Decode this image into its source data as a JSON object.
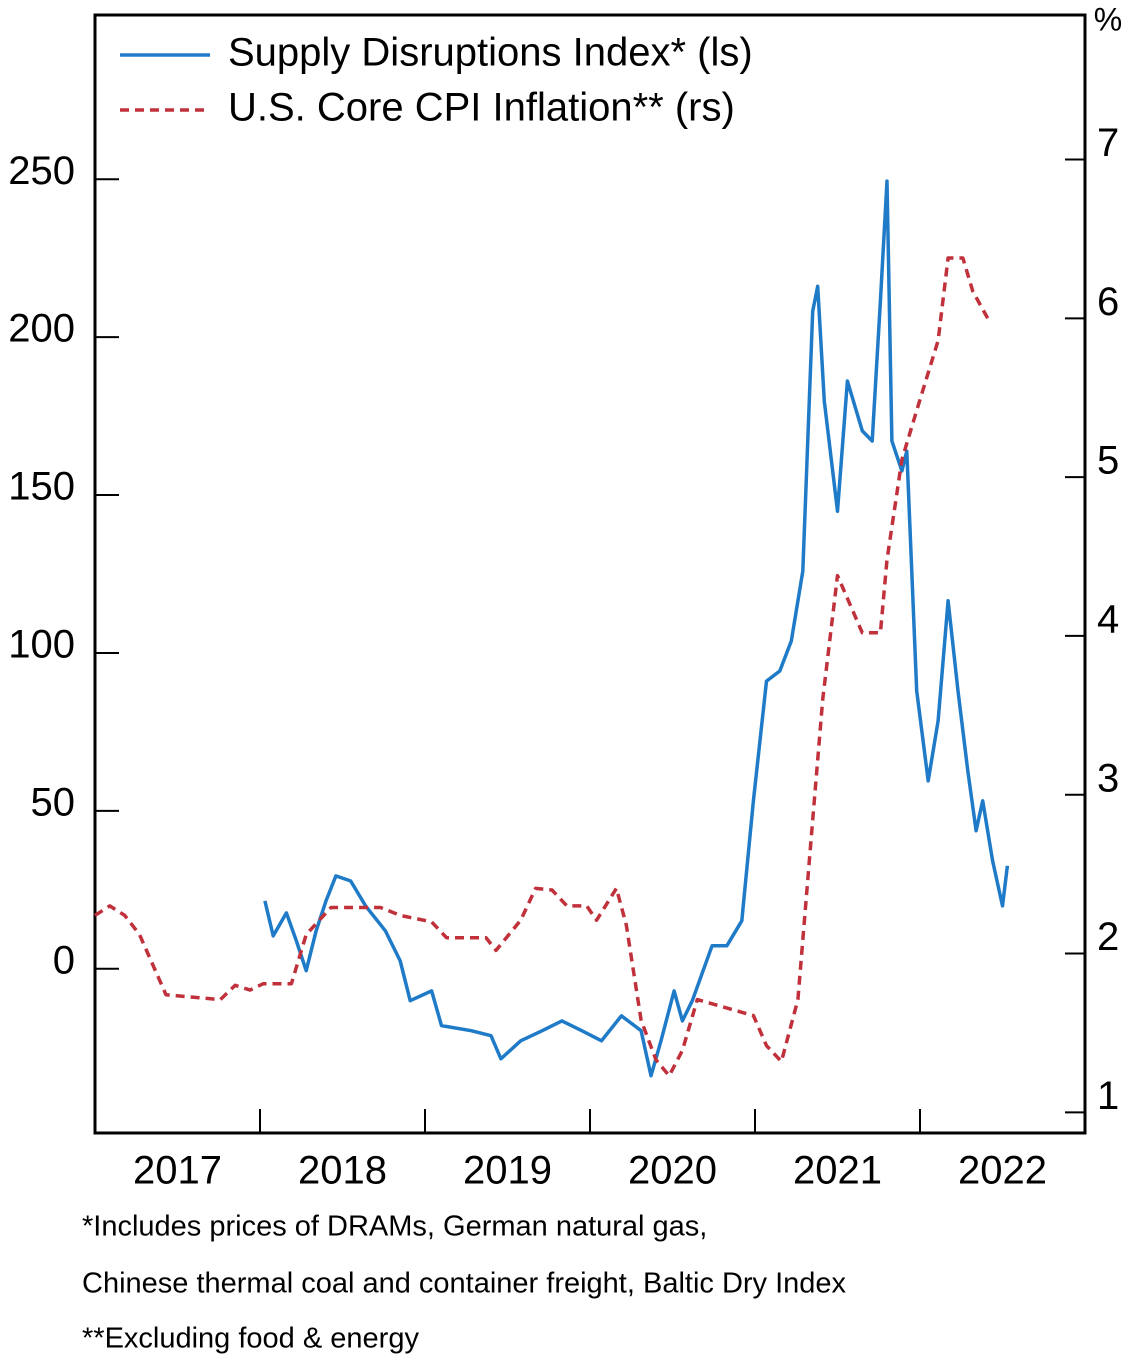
{
  "chart_data": {
    "type": "line",
    "xlim": [
      2017,
      2023
    ],
    "xticks": [
      2018,
      2019,
      2020,
      2021,
      2022
    ],
    "xlabels": [
      {
        "value": 2017.5,
        "label": "2017"
      },
      {
        "value": 2018.5,
        "label": "2018"
      },
      {
        "value": 2019.5,
        "label": "2019"
      },
      {
        "value": 2020.5,
        "label": "2020"
      },
      {
        "value": 2021.5,
        "label": "2021"
      },
      {
        "value": 2022.5,
        "label": "2022"
      }
    ],
    "ylim": [
      -52,
      302
    ],
    "yticks": [
      0,
      50,
      100,
      150,
      200,
      250
    ],
    "y2lim": [
      0.87,
      7.91
    ],
    "y2ticks": [
      1,
      2,
      3,
      4,
      5,
      6,
      7
    ],
    "y2_unit": "%",
    "legend": "upper left",
    "series": [
      {
        "name": "Supply Disruptions Index* (ls)",
        "color": "#1f7bc8",
        "axis": "y",
        "style": "solid",
        "x": [
          2018.03,
          2018.08,
          2018.16,
          2018.22,
          2018.28,
          2018.34,
          2018.4,
          2018.46,
          2018.55,
          2018.64,
          2018.76,
          2018.85,
          2018.91,
          2019.04,
          2019.1,
          2019.28,
          2019.4,
          2019.46,
          2019.58,
          2019.71,
          2019.83,
          2019.95,
          2020.07,
          2020.19,
          2020.31,
          2020.37,
          2020.43,
          2020.51,
          2020.56,
          2020.62,
          2020.74,
          2020.83,
          2020.92,
          2020.99,
          2021.07,
          2021.15,
          2021.22,
          2021.29,
          2021.35,
          2021.38,
          2021.42,
          2021.5,
          2021.56,
          2021.65,
          2021.71,
          2021.76,
          2021.8,
          2021.83,
          2021.89,
          2021.92,
          2021.98,
          2022.05,
          2022.11,
          2022.17,
          2022.23,
          2022.29,
          2022.34,
          2022.38,
          2022.44,
          2022.5,
          2022.53
        ],
        "values": [
          21.5,
          10.4,
          17.7,
          8.9,
          -0.6,
          12.0,
          21.5,
          29.4,
          27.8,
          19.9,
          12.0,
          2.5,
          -10.1,
          -7.0,
          -18.0,
          -19.6,
          -21.2,
          -28.5,
          -22.8,
          -19.6,
          -16.5,
          -19.6,
          -22.8,
          -14.9,
          -19.6,
          -33.9,
          -22.8,
          -7.0,
          -16.5,
          -10.1,
          7.3,
          7.3,
          15.2,
          53.2,
          91.1,
          94.3,
          103.8,
          125.9,
          208.2,
          216.1,
          179.7,
          144.9,
          186.1,
          170.3,
          167.1,
          211.4,
          249.4,
          167.1,
          157.6,
          163.9,
          88.0,
          59.5,
          78.5,
          116.5,
          88.0,
          62.7,
          43.7,
          53.2,
          34.2,
          19.9,
          32.6
        ]
      },
      {
        "name": "U.S. Core CPI Inflation** (rs)",
        "color": "#c0313b",
        "axis": "y2",
        "style": "dashed",
        "x": [
          2017.0,
          2017.09,
          2017.18,
          2017.27,
          2017.43,
          2017.76,
          2017.85,
          2017.94,
          2018.02,
          2018.19,
          2018.28,
          2018.43,
          2018.73,
          2018.85,
          2019.04,
          2019.13,
          2019.37,
          2019.43,
          2019.58,
          2019.67,
          2019.77,
          2019.86,
          2019.98,
          2020.04,
          2020.16,
          2020.22,
          2020.31,
          2020.4,
          2020.48,
          2020.56,
          2020.65,
          2020.92,
          2020.99,
          2021.07,
          2021.16,
          2021.26,
          2021.33,
          2021.41,
          2021.5,
          2021.65,
          2021.76,
          2021.8,
          2021.89,
          2021.98,
          2022.11,
          2022.17,
          2022.26,
          2022.32,
          2022.41
        ],
        "values": [
          2.24,
          2.3,
          2.24,
          2.12,
          1.74,
          1.71,
          1.8,
          1.77,
          1.81,
          1.81,
          2.12,
          2.29,
          2.29,
          2.24,
          2.2,
          2.1,
          2.1,
          2.02,
          2.21,
          2.41,
          2.4,
          2.3,
          2.3,
          2.21,
          2.41,
          2.18,
          1.58,
          1.33,
          1.23,
          1.39,
          1.71,
          1.63,
          1.61,
          1.42,
          1.32,
          1.71,
          2.59,
          3.6,
          4.38,
          4.02,
          4.02,
          4.48,
          5.11,
          5.42,
          5.86,
          6.38,
          6.38,
          6.17,
          6.0
        ]
      }
    ],
    "notes": [
      "*Includes prices of DRAMs, German natural gas,",
      "Chinese thermal coal and container freight, Baltic Dry Index",
      "**Excluding food & energy"
    ]
  }
}
